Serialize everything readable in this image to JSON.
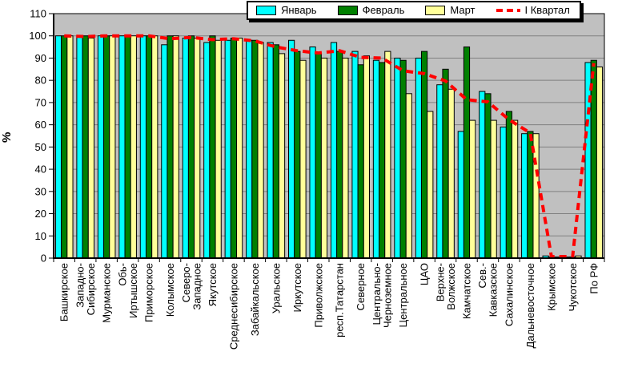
{
  "chart_data": {
    "type": "bar",
    "ylabel": "%",
    "ylim": [
      0,
      110
    ],
    "yticks": [
      0,
      10,
      20,
      30,
      40,
      50,
      60,
      70,
      80,
      90,
      100,
      110
    ],
    "grid": true,
    "legend_position": "top",
    "plot_bg": "#c0c0c0",
    "gridline_color": "#808080",
    "categories": [
      "Башкирское",
      "Западно-\nСибирское",
      "Мурманское",
      "Обь-\nИртышское",
      "Приморское",
      "Колымское",
      "Северо-\nЗападное",
      "Якутское",
      "Среднесибирское",
      "Забайкальское",
      "Уральское",
      "Иркутское",
      "Приволжское",
      "респ.Татарстан",
      "Северное",
      "Центрально-\nЧерноземное",
      "Центральное",
      "ЦАО",
      "Верхне-\nВолжское",
      "Камчатское",
      "Сев.-\nКавказское",
      "Сахалинское",
      "Дальневосточное",
      "Крымское",
      "Чукотское",
      "По РФ"
    ],
    "series": [
      {
        "name": "Январь",
        "kind": "bar",
        "color": "#00ffff",
        "values": [
          100,
          100,
          100,
          100,
          100,
          96,
          99,
          97,
          98,
          98,
          97,
          98,
          95,
          97,
          93,
          89,
          90,
          90,
          78,
          57,
          75,
          59,
          56,
          1,
          0.5,
          88
        ]
      },
      {
        "name": "Февраль",
        "kind": "bar",
        "color": "#008000",
        "values": [
          100,
          100,
          100,
          100,
          100,
          100,
          100,
          100,
          99,
          98,
          96,
          93,
          92,
          93,
          87,
          88,
          89,
          93,
          85,
          95,
          74,
          66,
          57,
          0.5,
          0.5,
          89
        ]
      },
      {
        "name": "Март",
        "kind": "bar",
        "color": "#ffff99",
        "values": [
          100,
          99,
          100,
          100,
          100,
          100,
          99,
          98,
          99,
          97,
          92,
          89,
          90,
          90,
          91,
          93,
          74,
          66,
          76,
          62,
          62,
          62,
          56,
          0.5,
          1,
          86
        ]
      },
      {
        "name": "I Квартал",
        "kind": "line",
        "style": "dashed",
        "color": "#ff0000",
        "values": [
          100,
          99.7,
          100,
          100,
          100,
          98.7,
          99.3,
          98.3,
          98.7,
          97.7,
          95,
          93.3,
          92.3,
          93.3,
          90.3,
          90,
          84.3,
          83,
          79.7,
          71.3,
          70.3,
          62.3,
          56.3,
          0.7,
          0.7,
          87.7
        ]
      }
    ]
  }
}
